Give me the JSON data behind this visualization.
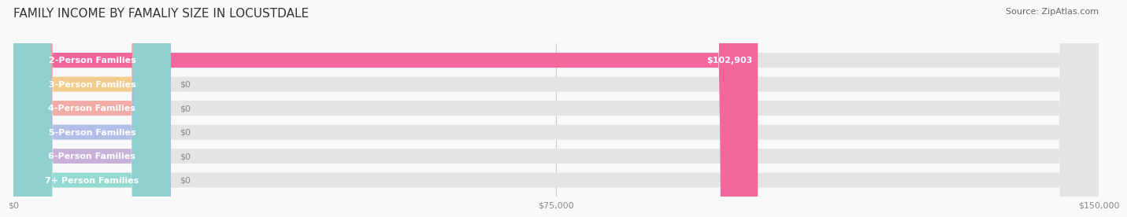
{
  "title": "FAMILY INCOME BY FAMALIY SIZE IN LOCUSTDALE",
  "source": "Source: ZipAtlas.com",
  "categories": [
    "2-Person Families",
    "3-Person Families",
    "4-Person Families",
    "5-Person Families",
    "6-Person Families",
    "7+ Person Families"
  ],
  "values": [
    102903,
    0,
    0,
    0,
    0,
    0
  ],
  "bar_colors": [
    "#f4679d",
    "#f5c97e",
    "#f4a49a",
    "#a8b8e8",
    "#c4a8d8",
    "#88d8d0"
  ],
  "xlim": [
    0,
    150000
  ],
  "xticks": [
    0,
    75000,
    150000
  ],
  "xtick_labels": [
    "$0",
    "$75,000",
    "$150,000"
  ],
  "value_label_max": "$102,903",
  "value_label_zero": "$0",
  "background_color": "#f9f9f9",
  "bar_bg_color": "#e4e4e4",
  "title_fontsize": 11,
  "source_fontsize": 8,
  "label_fontsize": 8,
  "tick_fontsize": 8
}
